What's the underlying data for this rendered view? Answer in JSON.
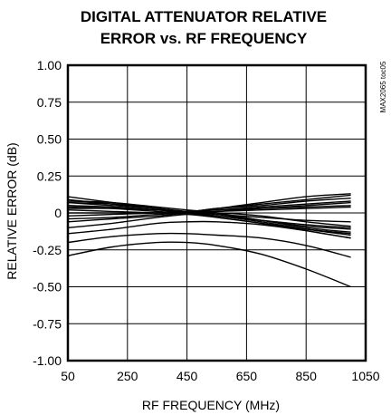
{
  "chart_data": {
    "type": "line",
    "title_lines": [
      "DIGITAL ATTENUATOR RELATIVE",
      "ERROR vs. RF FREQUENCY"
    ],
    "xlabel": "RF FREQUENCY (MHz)",
    "ylabel": "RELATIVE ERROR (dB)",
    "figure_id": "MAX2065 toc05",
    "xlim": [
      50,
      1050
    ],
    "ylim": [
      -1.0,
      1.0
    ],
    "x_ticks": [
      50,
      250,
      450,
      650,
      850,
      1050
    ],
    "x_tick_labels": [
      "50",
      "250",
      "450",
      "650",
      "850",
      "1050"
    ],
    "y_ticks": [
      1.0,
      0.75,
      0.5,
      0.25,
      0,
      -0.25,
      -0.5,
      -0.75,
      -1.0
    ],
    "y_tick_labels": [
      "1.00",
      "0.75",
      "0.50",
      "0.25",
      "0",
      "-0.25",
      "-0.50",
      "-0.75",
      "-1.00"
    ],
    "grid": true,
    "line_color": "#000000",
    "x": [
      50,
      200,
      350,
      450,
      550,
      700,
      850,
      1000
    ],
    "series": [
      {
        "values": [
          0.11,
          0.07,
          0.03,
          0.01,
          0.03,
          0.07,
          0.11,
          0.13
        ]
      },
      {
        "values": [
          0.09,
          0.06,
          0.03,
          0.01,
          0.03,
          0.06,
          0.09,
          0.12
        ]
      },
      {
        "values": [
          0.07,
          0.05,
          0.03,
          0.01,
          0.03,
          0.05,
          0.08,
          0.1
        ]
      },
      {
        "values": [
          0.05,
          0.04,
          0.02,
          0.01,
          0.02,
          0.04,
          0.06,
          0.08
        ]
      },
      {
        "values": [
          0.03,
          0.03,
          0.02,
          0.01,
          0.02,
          0.03,
          0.04,
          0.05
        ]
      },
      {
        "values": [
          0.08,
          0.07,
          0.04,
          0.02,
          0.0,
          -0.05,
          -0.09,
          -0.11
        ]
      },
      {
        "values": [
          0.07,
          0.06,
          0.03,
          0.01,
          -0.01,
          -0.05,
          -0.1,
          -0.13
        ]
      },
      {
        "values": [
          0.05,
          0.04,
          0.02,
          0.0,
          -0.02,
          -0.06,
          -0.11,
          -0.15
        ]
      },
      {
        "values": [
          0.04,
          0.03,
          0.01,
          0.0,
          -0.03,
          -0.07,
          -0.12,
          -0.17
        ]
      },
      {
        "values": [
          0.02,
          0.01,
          0.0,
          -0.01,
          -0.03,
          -0.07,
          -0.11,
          -0.14
        ]
      },
      {
        "values": [
          0.0,
          0.0,
          0.0,
          0.0,
          -0.02,
          -0.05,
          -0.08,
          -0.1
        ]
      },
      {
        "values": [
          -0.02,
          -0.01,
          0.0,
          0.0,
          -0.01,
          -0.03,
          -0.05,
          -0.06
        ]
      },
      {
        "values": [
          -0.04,
          -0.03,
          -0.01,
          0.0,
          0.01,
          0.02,
          0.03,
          0.04
        ]
      },
      {
        "values": [
          -0.06,
          -0.04,
          -0.02,
          0.0,
          0.01,
          0.03,
          0.05,
          0.07
        ]
      },
      {
        "values": [
          -0.1,
          -0.07,
          -0.03,
          -0.01,
          0.0,
          -0.02,
          -0.06,
          -0.09
        ]
      },
      {
        "values": [
          -0.14,
          -0.11,
          -0.07,
          -0.06,
          -0.06,
          -0.08,
          -0.12,
          -0.17
        ]
      },
      {
        "values": [
          -0.2,
          -0.16,
          -0.14,
          -0.14,
          -0.15,
          -0.17,
          -0.22,
          -0.3
        ]
      },
      {
        "values": [
          -0.29,
          -0.23,
          -0.2,
          -0.2,
          -0.22,
          -0.28,
          -0.38,
          -0.5
        ]
      }
    ]
  }
}
